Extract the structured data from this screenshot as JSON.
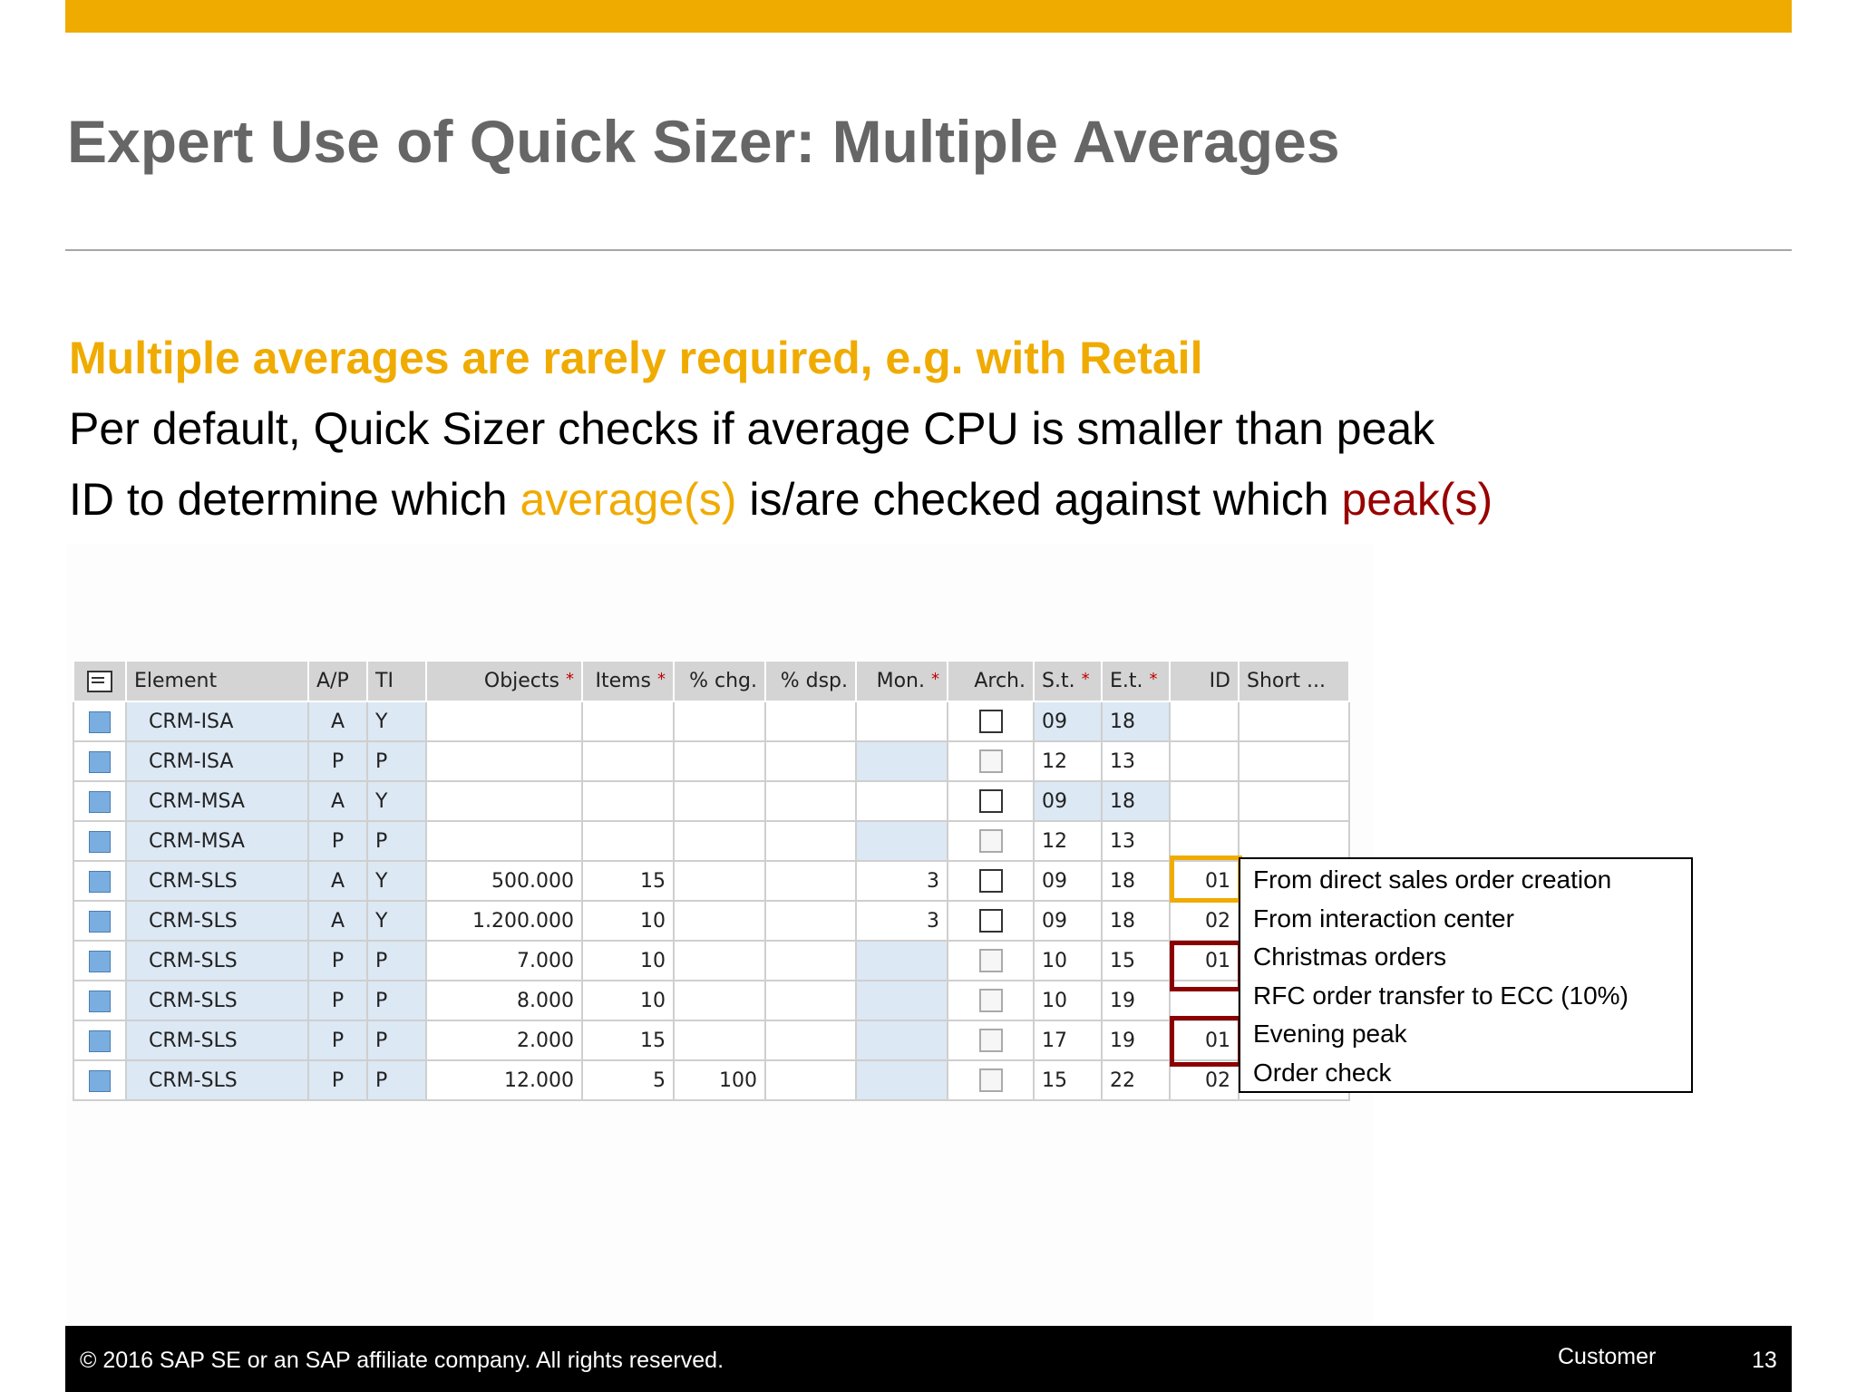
{
  "slide": {
    "title": "Expert Use of Quick Sizer: Multiple Averages",
    "subtitle": "Multiple averages are rarely required, e.g. with Retail",
    "line1": "Per default, Quick Sizer checks if average CPU is smaller than peak",
    "line2_before": "ID to determine which ",
    "line2_avg": "average(s)",
    "line2_mid": " is/are checked against which ",
    "line2_peak": "peak(s)"
  },
  "colors": {
    "accent": "#F0AB00",
    "peak": "#990000",
    "title": "#666666"
  },
  "table": {
    "headers": {
      "element": "Element",
      "ap": "A/P",
      "ti": "TI",
      "objects": "Objects",
      "items": "Items",
      "chg": "% chg.",
      "dsp": "% dsp.",
      "mon": "Mon.",
      "arch": "Arch.",
      "st": "S.t.",
      "et": "E.t.",
      "id": "ID",
      "short": "Short ..."
    },
    "required_marker": "*",
    "rows": [
      {
        "element": "CRM-ISA",
        "ap": "A",
        "ti": "Y",
        "objects": "",
        "items": "",
        "chg": "",
        "dsp": "",
        "mon": "",
        "st": "09",
        "et": "18",
        "id": "",
        "short": ""
      },
      {
        "element": "CRM-ISA",
        "ap": "P",
        "ti": "P",
        "objects": "",
        "items": "",
        "chg": "",
        "dsp": "",
        "mon": "",
        "st": "12",
        "et": "13",
        "id": "",
        "short": ""
      },
      {
        "element": "CRM-MSA",
        "ap": "A",
        "ti": "Y",
        "objects": "",
        "items": "",
        "chg": "",
        "dsp": "",
        "mon": "",
        "st": "09",
        "et": "18",
        "id": "",
        "short": ""
      },
      {
        "element": "CRM-MSA",
        "ap": "P",
        "ti": "P",
        "objects": "",
        "items": "",
        "chg": "",
        "dsp": "",
        "mon": "",
        "st": "12",
        "et": "13",
        "id": "",
        "short": ""
      },
      {
        "element": "CRM-SLS",
        "ap": "A",
        "ti": "Y",
        "objects": "500.000",
        "items": "15",
        "chg": "",
        "dsp": "",
        "mon": "3",
        "st": "09",
        "et": "18",
        "id": "01",
        "short": "From dire"
      },
      {
        "element": "CRM-SLS",
        "ap": "A",
        "ti": "Y",
        "objects": "1.200.000",
        "items": "10",
        "chg": "",
        "dsp": "",
        "mon": "3",
        "st": "09",
        "et": "18",
        "id": "02",
        "short": "From inte"
      },
      {
        "element": "CRM-SLS",
        "ap": "P",
        "ti": "P",
        "objects": "7.000",
        "items": "10",
        "chg": "",
        "dsp": "",
        "mon": "",
        "st": "10",
        "et": "15",
        "id": "01",
        "short": "Christma"
      },
      {
        "element": "CRM-SLS",
        "ap": "P",
        "ti": "P",
        "objects": "8.000",
        "items": "10",
        "chg": "",
        "dsp": "",
        "mon": "",
        "st": "10",
        "et": "19",
        "id": "",
        "short": "RFC orde"
      },
      {
        "element": "CRM-SLS",
        "ap": "P",
        "ti": "P",
        "objects": "2.000",
        "items": "15",
        "chg": "",
        "dsp": "",
        "mon": "",
        "st": "17",
        "et": "19",
        "id": "01",
        "short": "Evening"
      },
      {
        "element": "CRM-SLS",
        "ap": "P",
        "ti": "P",
        "objects": "12.000",
        "items": "5",
        "chg": "100",
        "dsp": "",
        "mon": "",
        "st": "15",
        "et": "22",
        "id": "02",
        "short": "Order ch"
      }
    ]
  },
  "callout": {
    "lines": [
      "From direct sales order creation",
      "From interaction center",
      "Christmas orders",
      "RFC order transfer to ECC (10%)",
      "Evening peak",
      "Order check"
    ]
  },
  "footer": {
    "copyright": "©  2016 SAP SE or an SAP affiliate company. All rights reserved.",
    "classification": "Customer",
    "page_number": "13"
  }
}
